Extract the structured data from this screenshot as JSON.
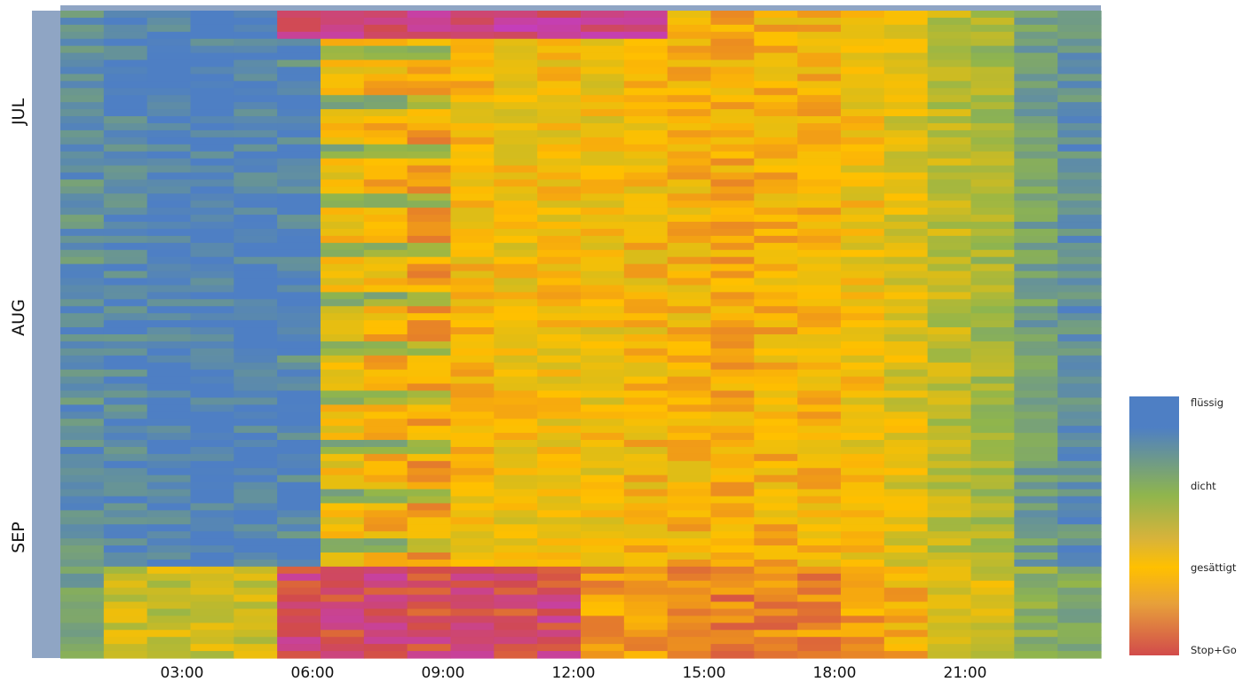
{
  "chart_data": {
    "type": "heatmap",
    "title": "",
    "xlabel": "",
    "ylabel": "",
    "x_tick_labels": [
      "03:00",
      "06:00",
      "09:00",
      "12:00",
      "15:00",
      "18:00",
      "21:00"
    ],
    "month_labels": [
      "JUL",
      "AUG",
      "SEP"
    ],
    "columns": 24,
    "rows": 92,
    "color_scale": [
      {
        "label": "flüssig",
        "color": "#4e7fc4"
      },
      {
        "label": "dicht",
        "color": "#8fb54d"
      },
      {
        "label": "gesättigt",
        "color": "#ffc000"
      },
      {
        "label": "Stop+Go",
        "color": "#d24b4b"
      }
    ],
    "extra_colors": {
      "severe": "#c03ad6",
      "header": "#8fa5c4"
    },
    "legend_position": "right"
  }
}
